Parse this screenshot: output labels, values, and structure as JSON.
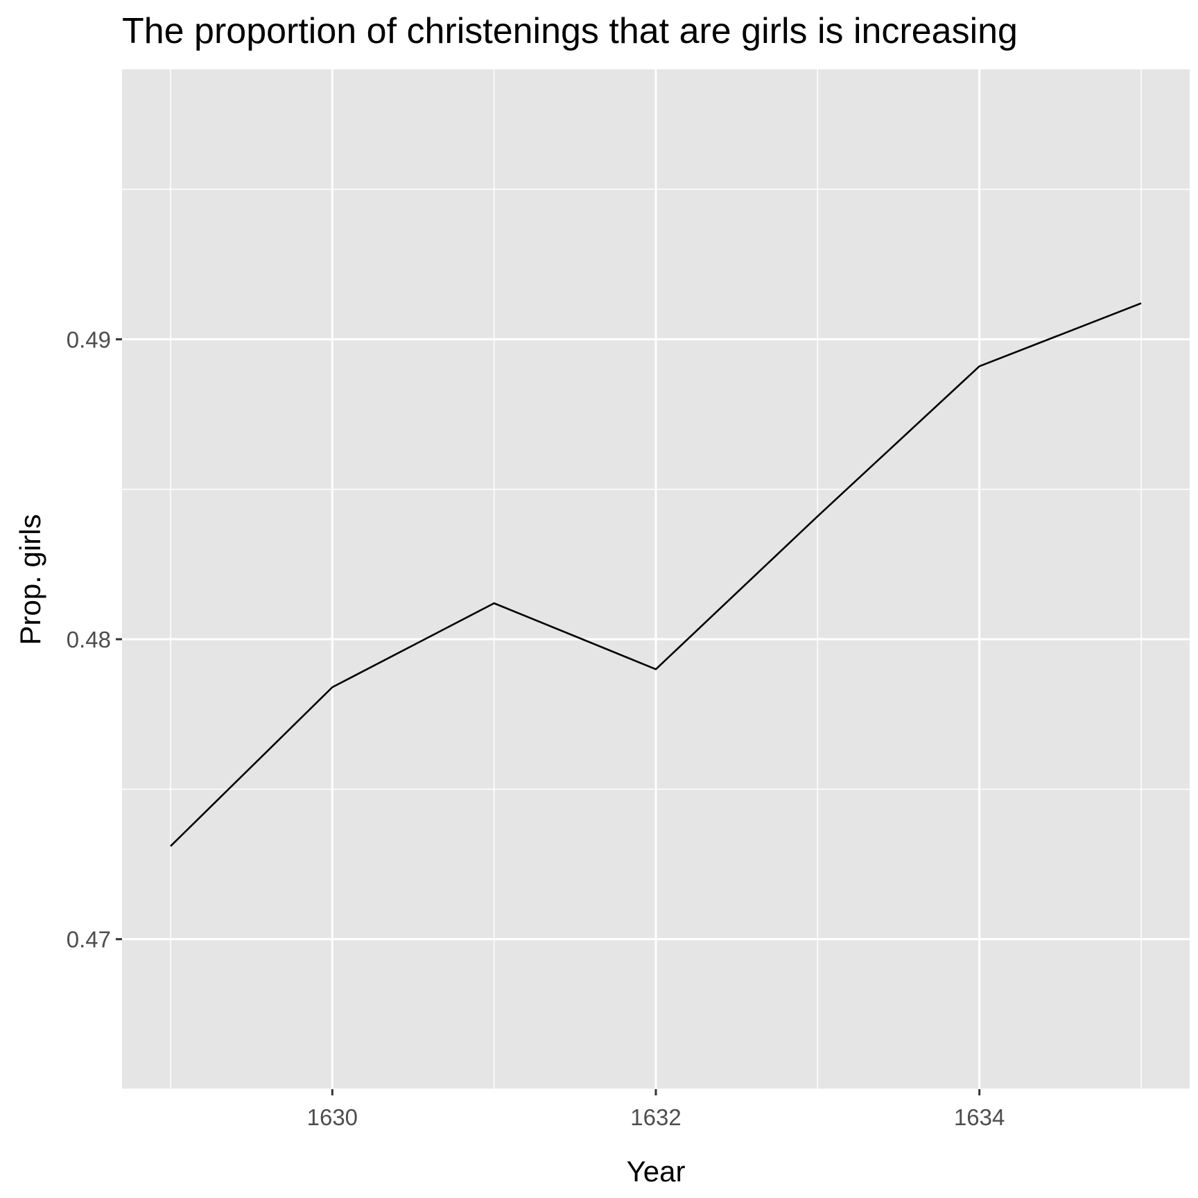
{
  "chart_data": {
    "type": "line",
    "title": "The proportion of christenings that are girls is increasing",
    "xlabel": "Year",
    "ylabel": "Prop. girls",
    "x": [
      1629,
      1630,
      1631,
      1632,
      1633,
      1634,
      1635
    ],
    "series": [
      {
        "values": [
          0.4731,
          0.4784,
          0.4812,
          0.479,
          0.4841,
          0.4891,
          0.4912
        ]
      }
    ],
    "xlim": [
      1628.7,
      1635.3
    ],
    "ylim": [
      0.465,
      0.499
    ],
    "xticks": [
      1630,
      1632,
      1634
    ],
    "xtick_labels": [
      "1630",
      "1632",
      "1634"
    ],
    "yticks": [
      0.47,
      0.48,
      0.49
    ],
    "ytick_labels": [
      "0.47",
      "0.48",
      "0.49"
    ],
    "x_minor": [
      1629,
      1631,
      1633,
      1635
    ],
    "y_minor": [
      0.475,
      0.485,
      0.495,
      0.465
    ],
    "grid": true,
    "colors": {
      "panel": "#e5e5e5",
      "grid": "#ffffff",
      "line": "#000000",
      "tick": "#4d4d4d"
    }
  }
}
